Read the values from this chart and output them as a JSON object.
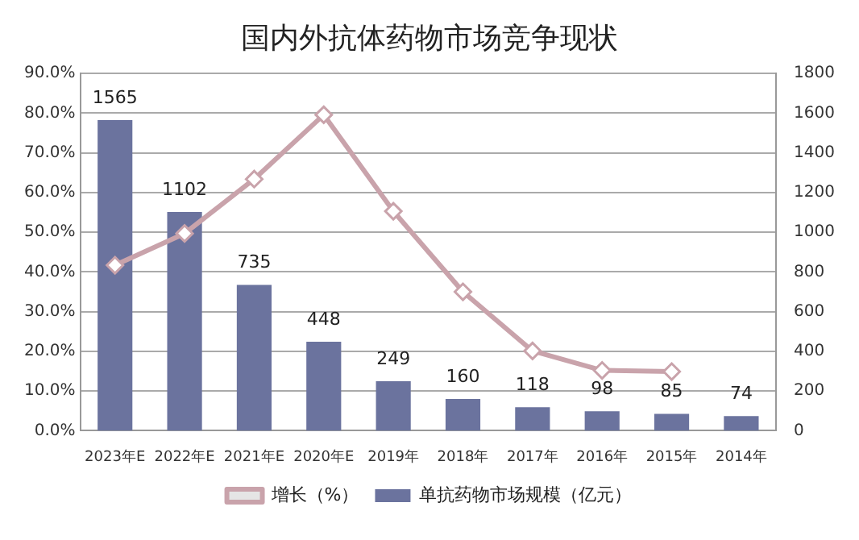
{
  "chart_data": {
    "type": "bar",
    "title": "国内外抗体药物市场竞争现状",
    "categories": [
      "2023年E",
      "2022年E",
      "2021年E",
      "2020年E",
      "2019年",
      "2018年",
      "2017年",
      "2016年",
      "2015年",
      "2014年"
    ],
    "series": [
      {
        "name": "增长（%）",
        "type": "line",
        "axis": "y",
        "color": "#c9a3ab",
        "marker": "diamond",
        "values": [
          41.7,
          49.7,
          63.4,
          79.6,
          55.3,
          35.0,
          20.1,
          15.2,
          14.9,
          null
        ]
      },
      {
        "name": "单抗药物市场规模（亿元）",
        "axis": "y2",
        "color": "#6b739e",
        "values": [
          1565,
          1102,
          735,
          448,
          249,
          160,
          118,
          98,
          85,
          74
        ],
        "value_labels": [
          "1565",
          "1102",
          "735",
          "448",
          "249",
          "160",
          "118",
          "98",
          "85",
          "74"
        ]
      }
    ],
    "legend": "bottom",
    "grid": "y",
    "ylim": [
      0,
      90
    ],
    "yticks": [
      {
        "value": 0,
        "label": "0.0%"
      },
      {
        "value": 10,
        "label": "10.0%"
      },
      {
        "value": 20,
        "label": "20.0%"
      },
      {
        "value": 30,
        "label": "30.0%"
      },
      {
        "value": 40,
        "label": "40.0%"
      },
      {
        "value": 50,
        "label": "50.0%"
      },
      {
        "value": 60,
        "label": "60.0%"
      },
      {
        "value": 70,
        "label": "70.0%"
      },
      {
        "value": 80,
        "label": "80.0%"
      },
      {
        "value": 90,
        "label": "90.0%"
      }
    ],
    "y2lim": [
      0,
      1800
    ],
    "y2ticks": [
      0,
      200,
      400,
      600,
      800,
      1000,
      1200,
      1400,
      1600,
      1800
    ]
  }
}
